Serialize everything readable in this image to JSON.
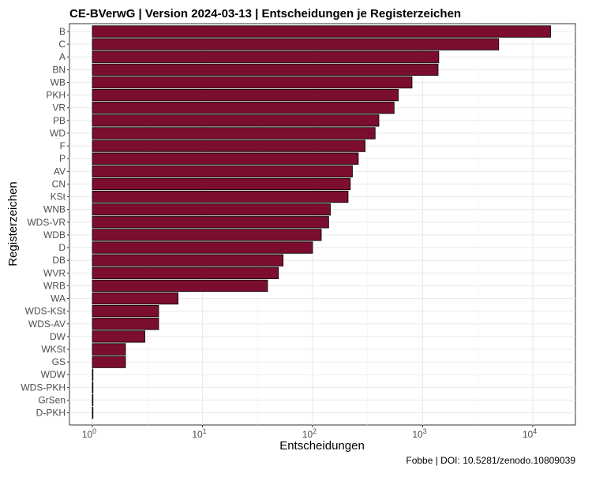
{
  "chart_data": {
    "type": "bar",
    "orientation": "horizontal",
    "title": "CE-BVerwG | Version 2024-03-13 | Entscheidungen je Registerzeichen",
    "xlabel": "Entscheidungen",
    "ylabel": "Registerzeichen",
    "caption": "Fobbe | DOI: 10.5281/zenodo.10809039",
    "x_scale": "log10",
    "xlim": [
      1,
      10000
    ],
    "x_ticks": [
      {
        "value": 1,
        "base": "10",
        "exp": "0"
      },
      {
        "value": 10,
        "base": "10",
        "exp": "1"
      },
      {
        "value": 100,
        "base": "10",
        "exp": "2"
      },
      {
        "value": 1000,
        "base": "10",
        "exp": "3"
      },
      {
        "value": 10000,
        "base": "10",
        "exp": "4"
      }
    ],
    "grid": true,
    "bar_color": "#7b0d2e",
    "categories": [
      "B",
      "C",
      "A",
      "BN",
      "WB",
      "PKH",
      "VR",
      "PB",
      "WD",
      "F",
      "P",
      "AV",
      "CN",
      "KSt",
      "WNB",
      "WDS-VR",
      "WDB",
      "D",
      "DB",
      "WVR",
      "WRB",
      "WA",
      "WDS-KSt",
      "WDS-AV",
      "DW",
      "WKSt",
      "GS",
      "WDW",
      "WDS-PKH",
      "GrSen",
      "D-PKH"
    ],
    "values": [
      14500,
      4900,
      1400,
      1380,
      800,
      600,
      550,
      400,
      370,
      300,
      260,
      230,
      220,
      210,
      145,
      140,
      120,
      100,
      54,
      49,
      39,
      6,
      4,
      4,
      3,
      2,
      2,
      1,
      1,
      1,
      1
    ]
  }
}
